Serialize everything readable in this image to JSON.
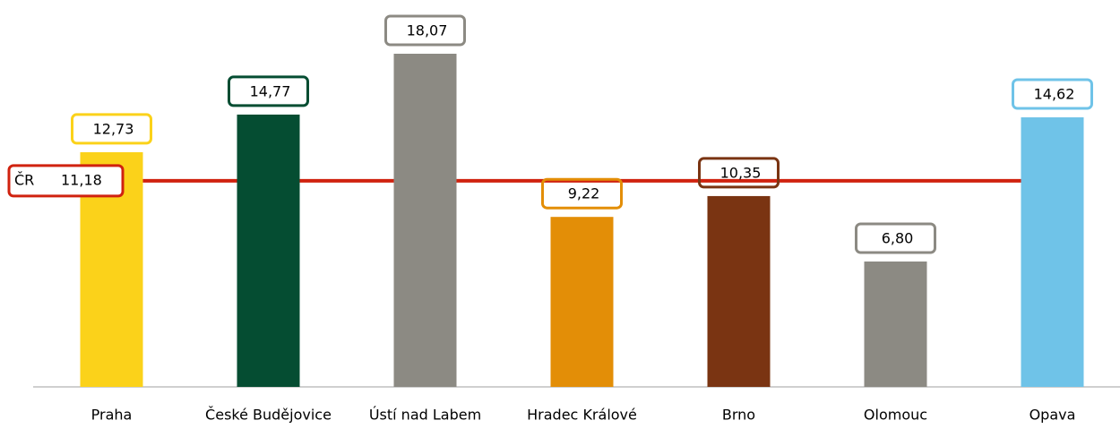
{
  "chart_data": {
    "type": "bar",
    "categories": [
      "Praha",
      "České Budějovice",
      "Ústí nad Labem",
      "Hradec Králové",
      "Brno",
      "Olomouc",
      "Opava"
    ],
    "values": [
      12.73,
      14.77,
      18.07,
      9.22,
      10.35,
      6.8,
      14.62
    ],
    "value_labels": [
      "12,73",
      "14,77",
      "18,07",
      "9,22",
      "10,35",
      "6,80",
      "14,62"
    ],
    "colors": [
      "#fbd21a",
      "#054d32",
      "#8c8a83",
      "#e38e07",
      "#7a3412",
      "#8c8a83",
      "#6fc3e8"
    ],
    "reference": {
      "label": "ČR",
      "value": 11.18,
      "value_label": "11,18",
      "color": "#d0220f"
    }
  }
}
